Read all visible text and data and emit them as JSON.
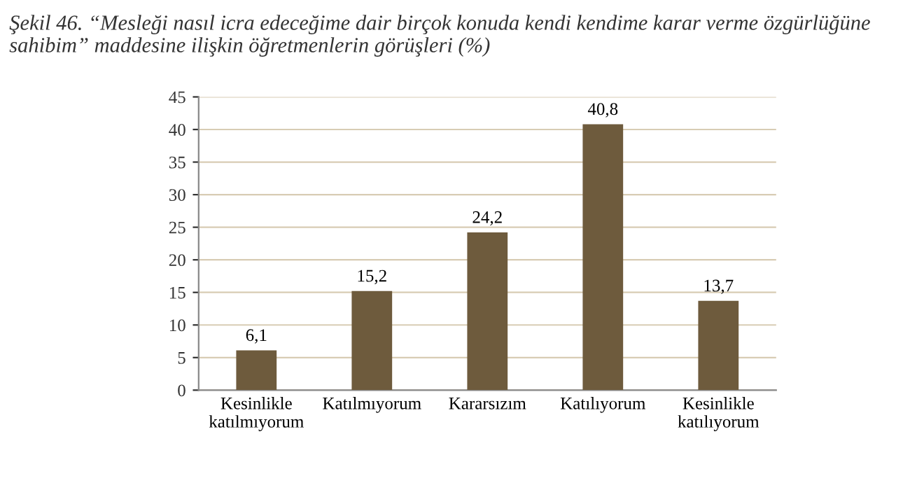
{
  "chart_data": {
    "type": "bar",
    "title": "Şekil 46. “Mesleği nasıl icra edeceğime dair birçok konuda kendi kendime karar verme özgürlüğüne sahibim” maddesine ilişkin öğretmenlerin görüşleri (%)",
    "categories": [
      "Kesinlikle\nkatılmıyorum",
      "Katılmıyorum",
      "Kararsızım",
      "Katılıyorum",
      "Kesinlikle\nkatılıyorum"
    ],
    "values": [
      6.1,
      15.2,
      24.2,
      40.8,
      13.7
    ],
    "value_labels": [
      "6,1",
      "15,2",
      "24,2",
      "40,8",
      "13,7"
    ],
    "color": "#6e5b3d",
    "ylim": [
      0,
      45
    ],
    "yticks": [
      0,
      5,
      10,
      15,
      20,
      25,
      30,
      35,
      40,
      45
    ],
    "grid": "y",
    "legend": false
  }
}
